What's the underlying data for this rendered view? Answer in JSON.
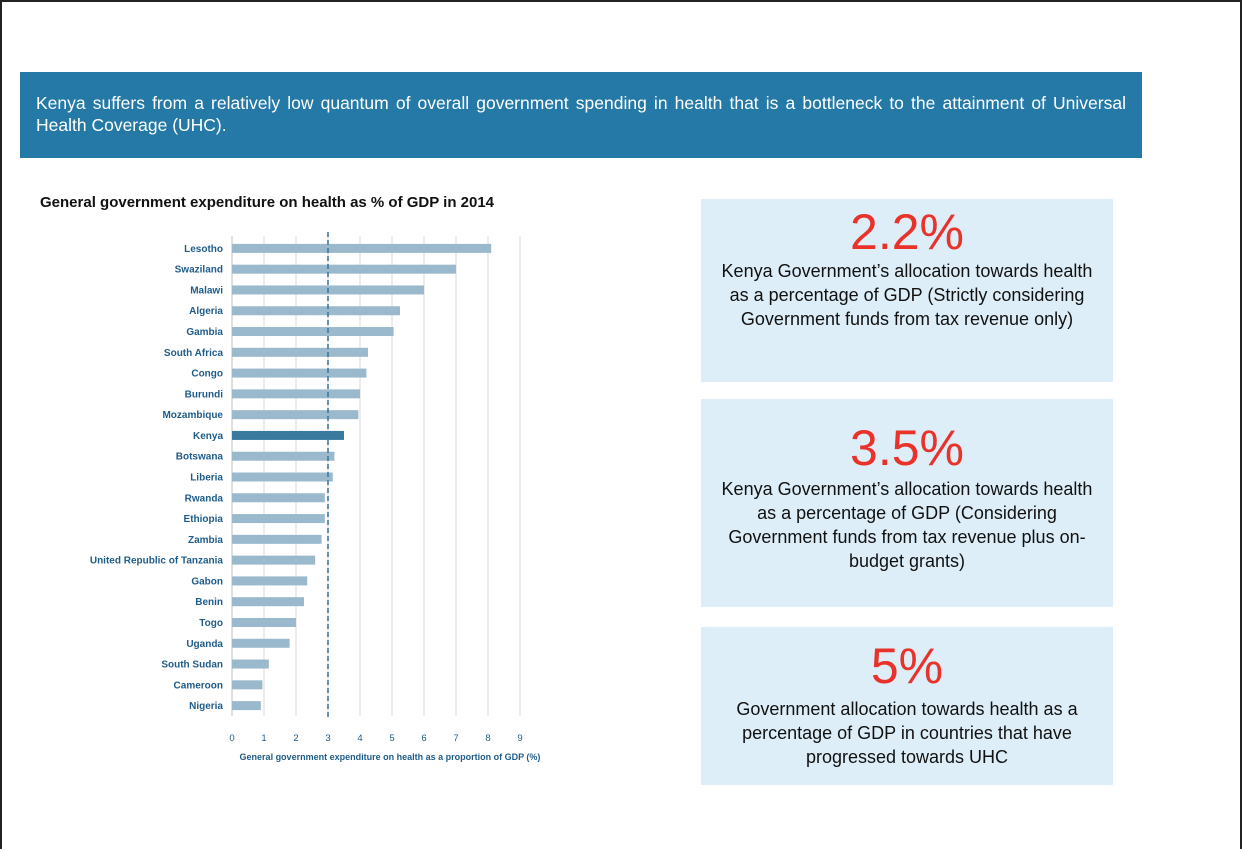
{
  "banner": {
    "text": "Kenya suffers from a relatively low quantum of overall government spending in health that is a bottleneck to the attainment of Universal Health Coverage (UHC)."
  },
  "chart_data": {
    "type": "bar",
    "orientation": "horizontal",
    "title": "General government expenditure on health as % of GDP in 2014",
    "xlabel": "General government expenditure on health as a proportion of GDP (%)",
    "ylabel": "",
    "xlim": [
      0,
      9
    ],
    "xticks": [
      "0",
      "1",
      "2",
      "3",
      "4",
      "5",
      "6",
      "7",
      "8",
      "9"
    ],
    "grid": true,
    "reference_line": 3,
    "highlight": "Kenya",
    "colors": {
      "bar": "#9bb9cc",
      "highlight": "#3a7a9f",
      "tick": "#1f5c8a",
      "reference": "#3a7a9f",
      "grid": "#d9d9d9"
    },
    "categories": [
      "Lesotho",
      "Swaziland",
      "Malawi",
      "Algeria",
      "Gambia",
      "South Africa",
      "Congo",
      "Burundi",
      "Mozambique",
      "Kenya",
      "Botswana",
      "Liberia",
      "Rwanda",
      "Ethiopia",
      "Zambia",
      "United Republic of Tanzania",
      "Gabon",
      "Benin",
      "Togo",
      "Uganda",
      "South Sudan",
      "Cameroon",
      "Nigeria"
    ],
    "values": [
      8.1,
      7.0,
      6.0,
      5.25,
      5.05,
      4.25,
      4.2,
      4.0,
      3.95,
      3.5,
      3.2,
      3.15,
      2.9,
      2.9,
      2.8,
      2.6,
      2.35,
      2.25,
      2.0,
      1.8,
      1.15,
      0.95,
      0.9
    ]
  },
  "stats": [
    {
      "value": "2.2%",
      "description": "Kenya Government’s allocation towards health as a percentage of GDP (Strictly considering Government funds from tax revenue only)"
    },
    {
      "value": "3.5%",
      "description": "Kenya Government’s allocation towards health as a percentage of GDP (Considering Government funds from tax revenue plus on-budget grants)"
    },
    {
      "value": "5%",
      "description": "Government allocation towards health as a percentage of GDP in countries that have progressed towards UHC"
    }
  ]
}
